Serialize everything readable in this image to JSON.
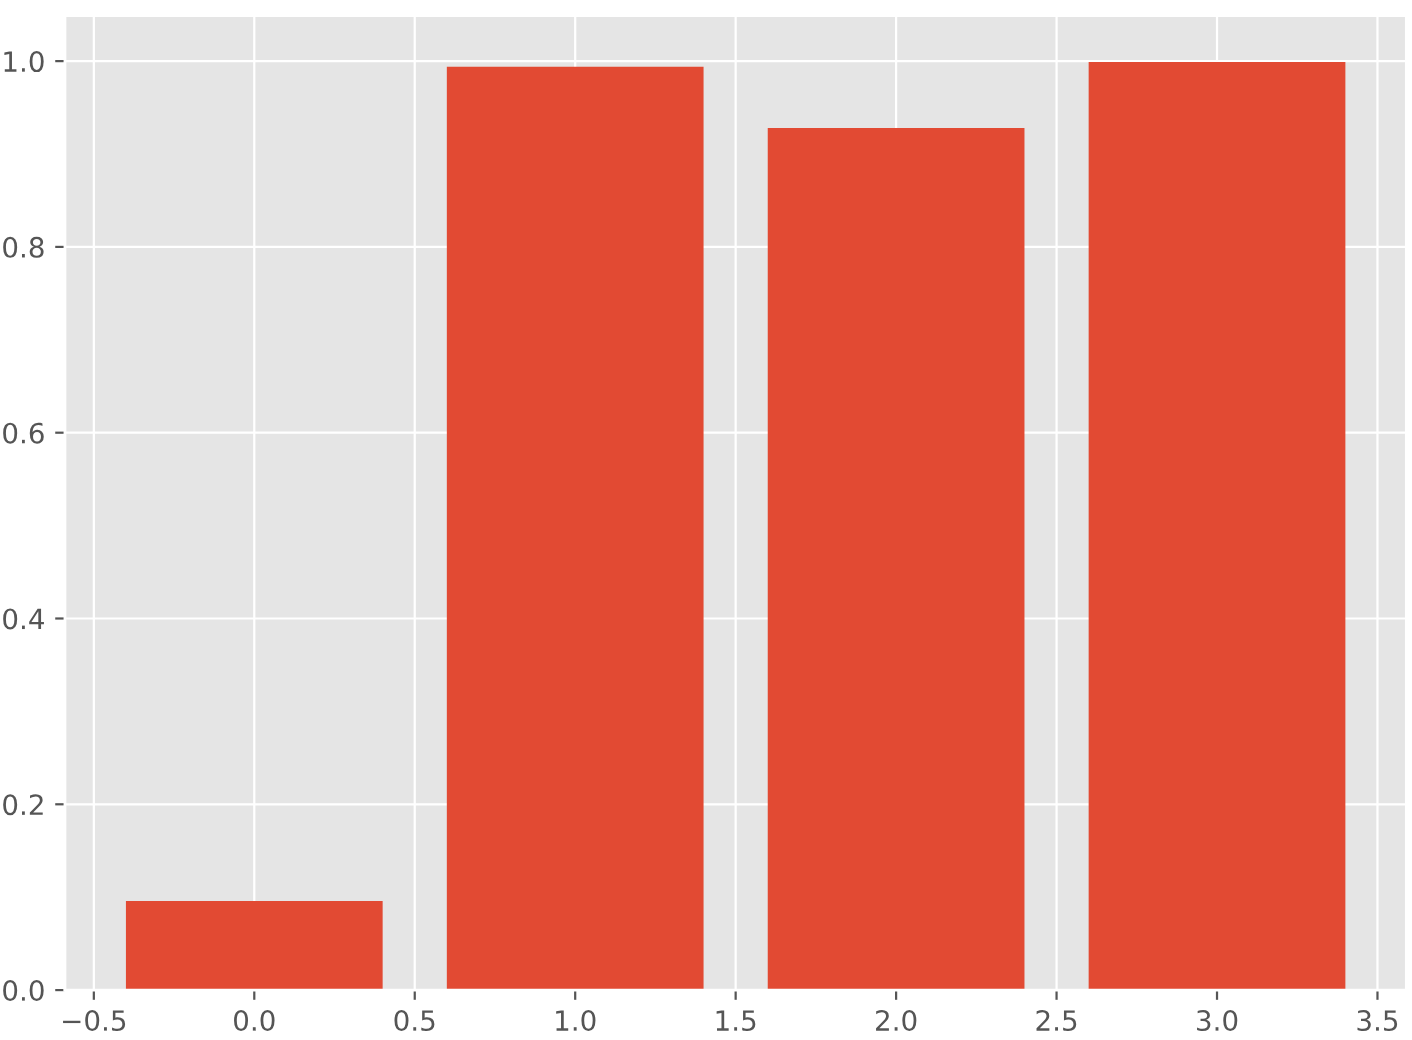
{
  "chart_data": {
    "type": "bar",
    "x": [
      0,
      1,
      2,
      3
    ],
    "values": [
      0.096,
      0.994,
      0.928,
      0.999
    ],
    "color": "#e24a33",
    "xlim": [
      -0.59,
      3.59
    ],
    "xticks": [
      {
        "value": -0.5,
        "label": "−0.5"
      },
      {
        "value": 0,
        "label": "0.0"
      },
      {
        "value": 0.5,
        "label": "0.5"
      },
      {
        "value": 1,
        "label": "1.0"
      },
      {
        "value": 1.5,
        "label": "1.5"
      },
      {
        "value": 2,
        "label": "2.0"
      },
      {
        "value": 2.5,
        "label": "2.5"
      },
      {
        "value": 3,
        "label": "3.0"
      },
      {
        "value": 3.5,
        "label": "3.5"
      }
    ],
    "ylim": [
      0,
      1.049
    ],
    "yticks": [
      {
        "value": 0,
        "label": "0.0"
      },
      {
        "value": 0.2,
        "label": "0.2"
      },
      {
        "value": 0.4,
        "label": "0.4"
      },
      {
        "value": 0.6,
        "label": "0.6"
      },
      {
        "value": 0.8,
        "label": "0.8"
      },
      {
        "value": 1,
        "label": "1.0"
      }
    ],
    "grid": true
  }
}
